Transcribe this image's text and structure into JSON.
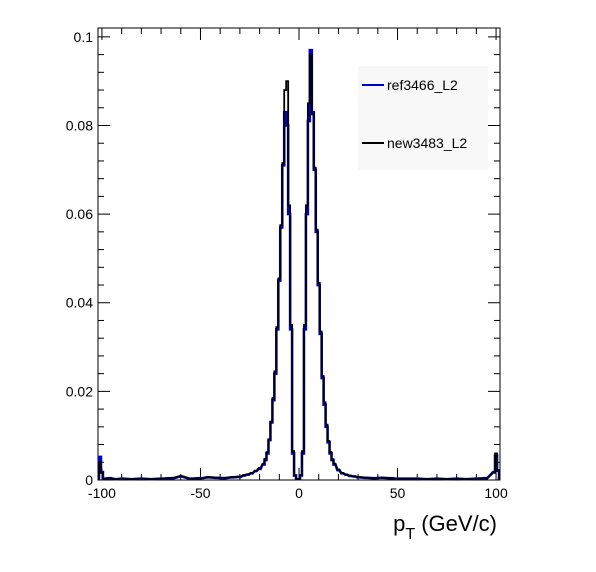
{
  "chart_data": {
    "type": "line",
    "style": "step-histogram",
    "title": "",
    "xlabel": {
      "main": "p",
      "subscript": "T",
      "unit": " (GeV/c)"
    },
    "ylabel": "",
    "xlim": [
      -102,
      102
    ],
    "ylim": [
      0,
      0.102
    ],
    "x_ticks": [
      -100,
      -50,
      0,
      50,
      100
    ],
    "x_tick_labels": [
      "-100",
      "-50",
      "0",
      "50",
      "100"
    ],
    "y_ticks": [
      0,
      0.02,
      0.04,
      0.06,
      0.08,
      0.1
    ],
    "y_tick_labels": [
      "0",
      "0.02",
      "0.04",
      "0.06",
      "0.08",
      "0.1"
    ],
    "grid": false,
    "legend_position": "top-right",
    "series": [
      {
        "name": "ref3466_L2",
        "color": "#0000cc",
        "points": [
          [
            -101,
            0.0052
          ],
          [
            -100,
            0.0018
          ],
          [
            -99,
            0.0003
          ],
          [
            -96,
            0.0004
          ],
          [
            -93,
            0.0002
          ],
          [
            -90,
            0.0003
          ],
          [
            -85,
            0.0002
          ],
          [
            -80,
            0.0003
          ],
          [
            -75,
            0.0002
          ],
          [
            -70,
            0.0003
          ],
          [
            -64,
            0.0004
          ],
          [
            -60,
            0.0008
          ],
          [
            -55,
            0.0003
          ],
          [
            -50,
            0.0004
          ],
          [
            -46,
            0.0006
          ],
          [
            -42,
            0.0005
          ],
          [
            -38,
            0.0004
          ],
          [
            -34,
            0.0006
          ],
          [
            -30,
            0.0007
          ],
          [
            -28,
            0.001
          ],
          [
            -26,
            0.0012
          ],
          [
            -24,
            0.0015
          ],
          [
            -22,
            0.002
          ],
          [
            -20,
            0.0025
          ],
          [
            -18,
            0.0035
          ],
          [
            -17,
            0.0045
          ],
          [
            -16,
            0.006
          ],
          [
            -15,
            0.009
          ],
          [
            -14,
            0.013
          ],
          [
            -13,
            0.018
          ],
          [
            -12,
            0.024
          ],
          [
            -11,
            0.034
          ],
          [
            -10,
            0.045
          ],
          [
            -9,
            0.057
          ],
          [
            -8,
            0.071
          ],
          [
            -7,
            0.083
          ],
          [
            -6,
            0.08
          ],
          [
            -5,
            0.06
          ],
          [
            -4,
            0.034
          ],
          [
            -3,
            0.006
          ],
          [
            -2,
            0.001
          ],
          [
            -1,
            0.0002
          ],
          [
            0,
            0.0002
          ],
          [
            1,
            0.001
          ],
          [
            2,
            0.006
          ],
          [
            3,
            0.034
          ],
          [
            4,
            0.06
          ],
          [
            5,
            0.081
          ],
          [
            6,
            0.097
          ],
          [
            7,
            0.083
          ],
          [
            8,
            0.07
          ],
          [
            9,
            0.056
          ],
          [
            10,
            0.044
          ],
          [
            11,
            0.033
          ],
          [
            12,
            0.023
          ],
          [
            13,
            0.017
          ],
          [
            14,
            0.012
          ],
          [
            15,
            0.0085
          ],
          [
            16,
            0.006
          ],
          [
            17,
            0.0045
          ],
          [
            18,
            0.0035
          ],
          [
            20,
            0.0022
          ],
          [
            22,
            0.0015
          ],
          [
            24,
            0.0012
          ],
          [
            26,
            0.0009
          ],
          [
            28,
            0.0008
          ],
          [
            30,
            0.0006
          ],
          [
            34,
            0.0005
          ],
          [
            38,
            0.0004
          ],
          [
            42,
            0.0005
          ],
          [
            46,
            0.0004
          ],
          [
            50,
            0.0003
          ],
          [
            55,
            0.0003
          ],
          [
            60,
            0.0003
          ],
          [
            65,
            0.0002
          ],
          [
            70,
            0.0003
          ],
          [
            75,
            0.0002
          ],
          [
            80,
            0.0003
          ],
          [
            85,
            0.0002
          ],
          [
            90,
            0.0003
          ],
          [
            95,
            0.0004
          ],
          [
            99,
            0.0018
          ],
          [
            100,
            0.0055
          ],
          [
            101,
            0.0022
          ]
        ]
      },
      {
        "name": "new3483_L2",
        "color": "#000000",
        "points": [
          [
            -101,
            0.004
          ],
          [
            -100,
            0.0016
          ],
          [
            -99,
            0.0003
          ],
          [
            -96,
            0.0004
          ],
          [
            -93,
            0.0002
          ],
          [
            -90,
            0.0003
          ],
          [
            -85,
            0.0002
          ],
          [
            -80,
            0.0003
          ],
          [
            -75,
            0.0002
          ],
          [
            -70,
            0.0003
          ],
          [
            -64,
            0.0005
          ],
          [
            -60,
            0.0009
          ],
          [
            -55,
            0.0003
          ],
          [
            -50,
            0.0004
          ],
          [
            -46,
            0.0006
          ],
          [
            -42,
            0.0005
          ],
          [
            -38,
            0.0005
          ],
          [
            -34,
            0.0006
          ],
          [
            -30,
            0.0008
          ],
          [
            -28,
            0.0011
          ],
          [
            -26,
            0.0013
          ],
          [
            -24,
            0.0016
          ],
          [
            -22,
            0.0021
          ],
          [
            -20,
            0.0027
          ],
          [
            -18,
            0.0037
          ],
          [
            -17,
            0.0048
          ],
          [
            -16,
            0.0063
          ],
          [
            -15,
            0.0092
          ],
          [
            -14,
            0.0132
          ],
          [
            -13,
            0.0185
          ],
          [
            -12,
            0.0245
          ],
          [
            -11,
            0.0345
          ],
          [
            -10,
            0.0455
          ],
          [
            -9,
            0.0575
          ],
          [
            -8,
            0.0715
          ],
          [
            -7,
            0.088
          ],
          [
            -6,
            0.09
          ],
          [
            -5,
            0.062
          ],
          [
            -4,
            0.035
          ],
          [
            -3,
            0.0065
          ],
          [
            -2,
            0.0011
          ],
          [
            -1,
            0.0002
          ],
          [
            0,
            0.0002
          ],
          [
            1,
            0.0011
          ],
          [
            2,
            0.0065
          ],
          [
            3,
            0.035
          ],
          [
            4,
            0.062
          ],
          [
            5,
            0.085
          ],
          [
            6,
            0.096
          ],
          [
            7,
            0.0825
          ],
          [
            8,
            0.0705
          ],
          [
            9,
            0.0565
          ],
          [
            10,
            0.0445
          ],
          [
            11,
            0.0335
          ],
          [
            12,
            0.0235
          ],
          [
            13,
            0.0175
          ],
          [
            14,
            0.0125
          ],
          [
            15,
            0.0088
          ],
          [
            16,
            0.0063
          ],
          [
            17,
            0.0047
          ],
          [
            18,
            0.0037
          ],
          [
            20,
            0.0024
          ],
          [
            22,
            0.0016
          ],
          [
            24,
            0.0012
          ],
          [
            26,
            0.001
          ],
          [
            28,
            0.0008
          ],
          [
            30,
            0.0007
          ],
          [
            34,
            0.0005
          ],
          [
            38,
            0.0004
          ],
          [
            42,
            0.0005
          ],
          [
            46,
            0.0004
          ],
          [
            50,
            0.0003
          ],
          [
            55,
            0.0003
          ],
          [
            60,
            0.0003
          ],
          [
            65,
            0.0002
          ],
          [
            70,
            0.0003
          ],
          [
            75,
            0.0002
          ],
          [
            80,
            0.0003
          ],
          [
            85,
            0.0002
          ],
          [
            90,
            0.0003
          ],
          [
            95,
            0.0004
          ],
          [
            99,
            0.0016
          ],
          [
            100,
            0.006
          ],
          [
            101,
            0.002
          ]
        ]
      }
    ]
  }
}
